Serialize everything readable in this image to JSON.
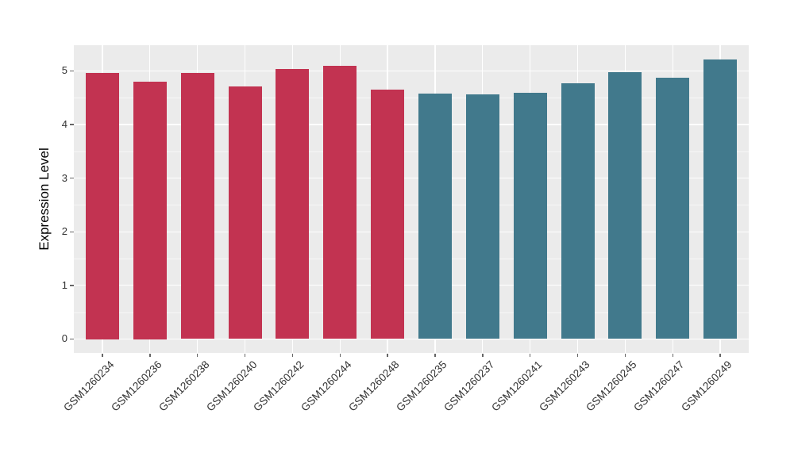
{
  "chart_data": {
    "type": "bar",
    "title": "",
    "xlabel": "",
    "ylabel": "Expression Level",
    "categories": [
      "GSM1260234",
      "GSM1260236",
      "GSM1260238",
      "GSM1260240",
      "GSM1260242",
      "GSM1260244",
      "GSM1260248",
      "GSM1260235",
      "GSM1260237",
      "GSM1260241",
      "GSM1260243",
      "GSM1260245",
      "GSM1260247",
      "GSM1260249"
    ],
    "values": [
      4.97,
      4.8,
      4.96,
      4.71,
      5.04,
      5.09,
      4.65,
      4.58,
      4.57,
      4.59,
      4.77,
      4.98,
      4.88,
      5.22
    ],
    "bar_colors": [
      "red",
      "red",
      "red",
      "red",
      "red",
      "red",
      "red",
      "teal",
      "teal",
      "teal",
      "teal",
      "teal",
      "teal",
      "teal"
    ],
    "colors": {
      "red": "#C23351",
      "teal": "#41798C"
    },
    "yticks": [
      0,
      1,
      2,
      3,
      4,
      5
    ],
    "yticks_minor": [
      0.5,
      1.5,
      2.5,
      3.5,
      4.5
    ],
    "ylim": [
      0,
      5.48
    ],
    "x_tick_rotation_deg": 45,
    "legend": "none",
    "grid": {
      "horizontal_major": "white lines at integer ticks",
      "horizontal_minor": "faint white lines at half ticks",
      "vertical_major": "white line at each category center",
      "color": "#FFFFFF"
    },
    "panel_background": "#EBEBEB",
    "figure_background": "#FFFFFF",
    "tick_text_color": "#333333"
  }
}
